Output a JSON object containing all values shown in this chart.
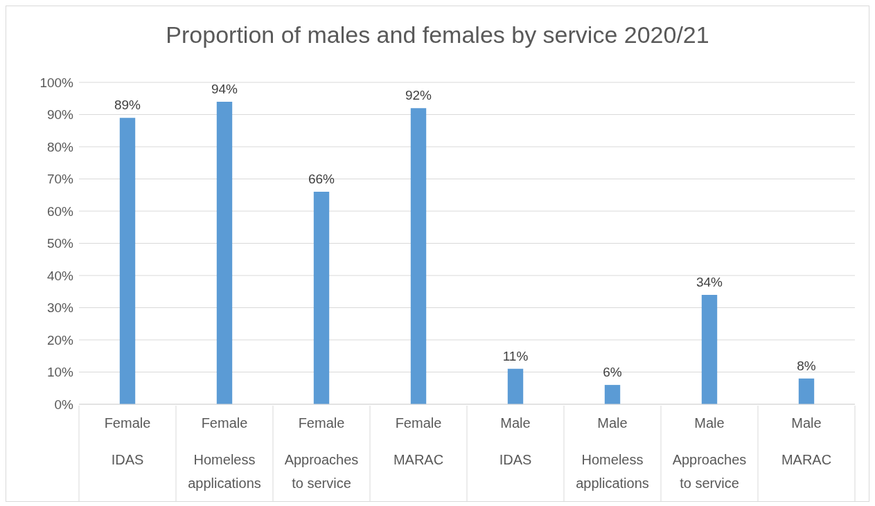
{
  "chart_data": {
    "type": "bar",
    "title": "Proportion of males and females by service 2020/21",
    "categories": [
      "Female IDAS",
      "Female Homeless applications",
      "Female Approaches to service",
      "Female MARAC",
      "Male IDAS",
      "Male Homeless applications",
      "Male Approaches to service",
      "Male MARAC"
    ],
    "values": [
      89,
      94,
      66,
      92,
      11,
      6,
      34,
      8
    ],
    "color": "#5b9bd5",
    "ylim": [
      0,
      100
    ],
    "yticks": [
      {
        "value": 0,
        "label": "0%"
      },
      {
        "value": 10,
        "label": "10%"
      },
      {
        "value": 20,
        "label": "20%"
      },
      {
        "value": 30,
        "label": "30%"
      },
      {
        "value": 40,
        "label": "40%"
      },
      {
        "value": 50,
        "label": "50%"
      },
      {
        "value": 60,
        "label": "60%"
      },
      {
        "value": 70,
        "label": "70%"
      },
      {
        "value": 80,
        "label": "80%"
      },
      {
        "value": 90,
        "label": "90%"
      },
      {
        "value": 100,
        "label": "100%"
      }
    ],
    "grid": "y",
    "value_labels": [
      "89%",
      "94%",
      "66%",
      "92%",
      "11%",
      "6%",
      "34%",
      "8%"
    ]
  }
}
